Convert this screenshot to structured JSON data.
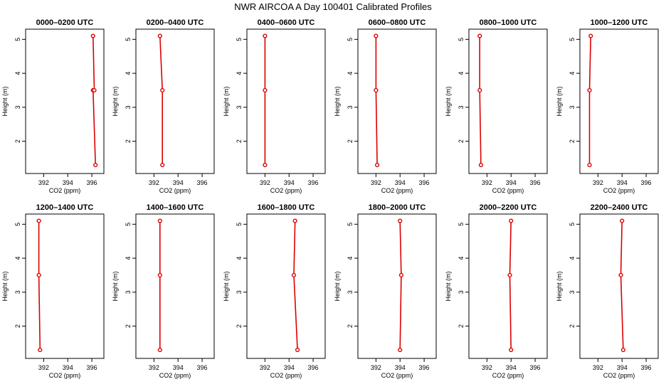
{
  "page": {
    "title": "NWR AIRCOA A  Day 100401  Calibrated Profiles"
  },
  "colors": {
    "profile": "#dd0000",
    "axis": "#000000"
  },
  "axes": {
    "xlabel": "CO2 (ppm)",
    "ylabel": "Height (m)",
    "xlim": [
      390.5,
      397
    ],
    "ylim": [
      1.05,
      5.3
    ],
    "xticks": [
      392,
      394,
      396
    ],
    "yticks": [
      2,
      3,
      4,
      5
    ],
    "xtick_labels": [
      "392",
      "394",
      "396"
    ],
    "ytick_labels": [
      "2",
      "3",
      "4",
      "5"
    ]
  },
  "chart_data": [
    {
      "type": "line",
      "title": "0000–0200 UTC",
      "x": [
        396.3,
        396.1,
        396.2,
        396.1
      ],
      "y": [
        1.3,
        3.5,
        3.5,
        5.1
      ]
    },
    {
      "type": "line",
      "title": "0200–0400 UTC",
      "x": [
        392.7,
        392.7,
        392.5
      ],
      "y": [
        1.3,
        3.5,
        5.1
      ]
    },
    {
      "type": "line",
      "title": "0400–0600 UTC",
      "x": [
        392.0,
        392.0,
        392.0
      ],
      "y": [
        1.3,
        3.5,
        5.1
      ]
    },
    {
      "type": "line",
      "title": "0600–0800 UTC",
      "x": [
        392.1,
        392.0,
        392.0
      ],
      "y": [
        1.3,
        3.5,
        5.1
      ]
    },
    {
      "type": "line",
      "title": "0800–1000 UTC",
      "x": [
        391.5,
        391.4,
        391.4
      ],
      "y": [
        1.3,
        3.5,
        5.1
      ]
    },
    {
      "type": "line",
      "title": "1000–1200 UTC",
      "x": [
        391.3,
        391.3,
        391.4
      ],
      "y": [
        1.3,
        3.5,
        5.1
      ]
    },
    {
      "type": "line",
      "title": "1200–1400 UTC",
      "x": [
        391.7,
        391.6,
        391.6
      ],
      "y": [
        1.3,
        3.5,
        5.1
      ]
    },
    {
      "type": "line",
      "title": "1400–1600 UTC",
      "x": [
        392.5,
        392.5,
        392.5
      ],
      "y": [
        1.3,
        3.5,
        5.1
      ]
    },
    {
      "type": "line",
      "title": "1600–1800 UTC",
      "x": [
        394.7,
        394.4,
        394.5
      ],
      "y": [
        1.3,
        3.5,
        5.1
      ]
    },
    {
      "type": "line",
      "title": "1800–2000 UTC",
      "x": [
        394.0,
        394.1,
        394.0
      ],
      "y": [
        1.3,
        3.5,
        5.1
      ]
    },
    {
      "type": "line",
      "title": "2000–2200 UTC",
      "x": [
        394.0,
        393.9,
        394.0
      ],
      "y": [
        1.3,
        3.5,
        5.1
      ]
    },
    {
      "type": "line",
      "title": "2200–2400 UTC",
      "x": [
        394.1,
        393.9,
        394.0
      ],
      "y": [
        1.3,
        3.5,
        5.1
      ]
    }
  ]
}
